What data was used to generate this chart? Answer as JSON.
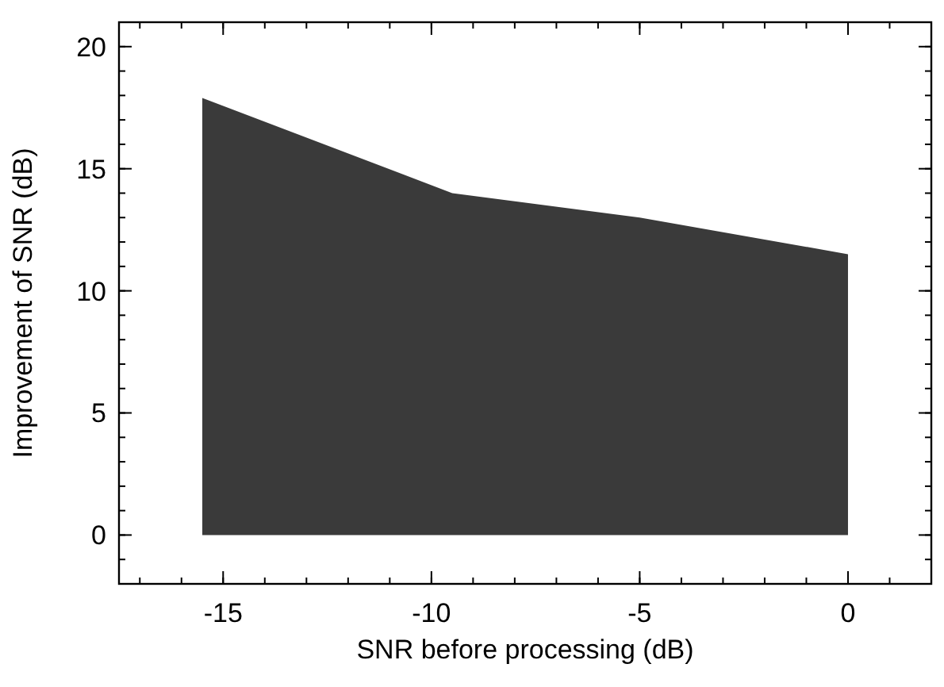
{
  "chart_data": {
    "type": "area",
    "xlabel": "SNR before processing (dB)",
    "ylabel": "Improvement of SNR (dB)",
    "x": [
      -15.5,
      -9.5,
      -5,
      0
    ],
    "series": [
      {
        "color": "#3a3a3a",
        "values": [
          17.9,
          14,
          13,
          11.5
        ]
      }
    ],
    "xlim": [
      -17.5,
      2
    ],
    "xticks": [
      -15,
      -10,
      -5,
      0
    ],
    "ylim": [
      -2,
      21
    ],
    "yticks": [
      0,
      5,
      10,
      15,
      20
    ],
    "grid": false
  }
}
